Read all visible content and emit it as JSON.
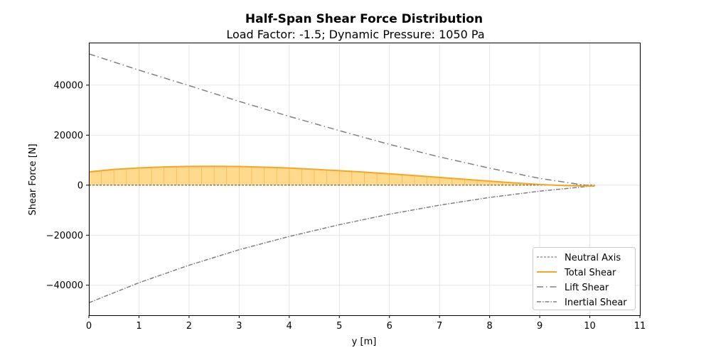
{
  "chart_data": {
    "type": "line",
    "title": "Half-Span Shear Force Distribution",
    "subtitle": "Load Factor: -1.5; Dynamic Pressure: 1050 Pa",
    "xlabel": "y [m]",
    "ylabel": "Shear Force [N]",
    "xlim": [
      0,
      11
    ],
    "ylim": [
      -52000,
      57000
    ],
    "xticks": [
      0,
      1,
      2,
      3,
      4,
      5,
      6,
      7,
      8,
      9,
      10,
      11
    ],
    "yticks": [
      -40000,
      -20000,
      0,
      20000,
      40000
    ],
    "ytick_labels": [
      "−40000",
      "−20000",
      "0",
      "20000",
      "40000"
    ],
    "grid": true,
    "legend_position": "lower-right",
    "series": [
      {
        "name": "Neutral Axis",
        "style": "dashed-thin",
        "color": "#333333",
        "x": [
          0,
          10.1
        ],
        "y": [
          0,
          0
        ]
      },
      {
        "name": "Total Shear",
        "style": "solid",
        "color": "#f5a623",
        "fill": "#ffd98c",
        "x": [
          0,
          0.5,
          1,
          1.5,
          2,
          2.5,
          3,
          3.5,
          4,
          4.5,
          5,
          5.5,
          6,
          6.5,
          7,
          7.5,
          8,
          8.5,
          9,
          9.5,
          10,
          10.1
        ],
        "y": [
          5300,
          6300,
          6900,
          7300,
          7500,
          7550,
          7450,
          7200,
          6850,
          6350,
          5800,
          5200,
          4550,
          3850,
          3100,
          2350,
          1600,
          900,
          250,
          -150,
          -350,
          -300
        ]
      },
      {
        "name": "Lift Shear",
        "style": "dashdot",
        "color": "#808080",
        "x": [
          0,
          1,
          2,
          3,
          4,
          5,
          6,
          7,
          8,
          9,
          10,
          10.1
        ],
        "y": [
          52500,
          46000,
          39800,
          33500,
          27500,
          21800,
          16300,
          11300,
          6800,
          2700,
          -300,
          -400
        ]
      },
      {
        "name": "Inertial Shear",
        "style": "dashdot-dense",
        "color": "#808080",
        "x": [
          0,
          1,
          2,
          3,
          4,
          5,
          6,
          7,
          8,
          9,
          10,
          10.1
        ],
        "y": [
          -47000,
          -39000,
          -32000,
          -25800,
          -20500,
          -15800,
          -11600,
          -8000,
          -4900,
          -2400,
          -400,
          -300
        ]
      }
    ]
  }
}
